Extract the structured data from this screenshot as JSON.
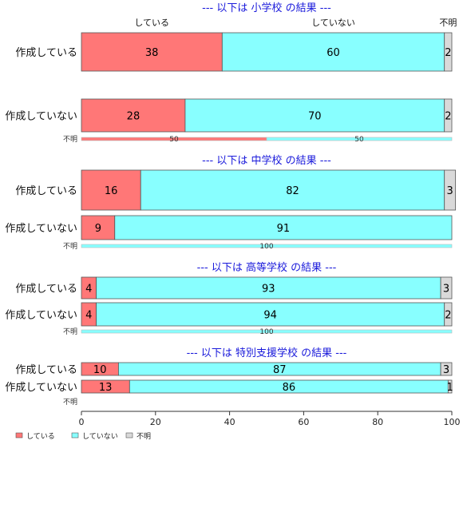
{
  "chart_data": {
    "type": "bar",
    "orientation": "horizontal",
    "stacked": true,
    "xlim": [
      0,
      100
    ],
    "x_ticks": [
      "0",
      "20",
      "40",
      "60",
      "80",
      "100"
    ],
    "column_headers": [
      "している",
      "していない",
      "不明"
    ],
    "legend": {
      "placement": "bottom-left",
      "entries": [
        "している",
        "していない",
        "不明"
      ]
    },
    "colors": {
      "yes": "#ff7777",
      "no": "#88ffff",
      "unknown": "#d9d9d9",
      "title": "#1a1adb"
    },
    "groups": [
      {
        "title": "--- 以下は 小学校 の結果 ---",
        "rows": [
          {
            "label": "作成している",
            "values": [
              38,
              60,
              2
            ]
          },
          {
            "label": "作成していない",
            "values": [
              28,
              70,
              2
            ]
          },
          {
            "label": "不明",
            "values": [
              50,
              50,
              0
            ]
          }
        ]
      },
      {
        "title": "--- 以下は 中学校 の結果 ---",
        "rows": [
          {
            "label": "作成している",
            "values": [
              16,
              82,
              3
            ]
          },
          {
            "label": "作成していない",
            "values": [
              9,
              91,
              0
            ]
          },
          {
            "label": "不明",
            "values": [
              0,
              100,
              0
            ]
          }
        ]
      },
      {
        "title": "--- 以下は 高等学校 の結果 ---",
        "rows": [
          {
            "label": "作成している",
            "values": [
              4,
              93,
              3
            ]
          },
          {
            "label": "作成していない",
            "values": [
              4,
              94,
              2
            ]
          },
          {
            "label": "不明",
            "values": [
              0,
              100,
              0
            ]
          }
        ]
      },
      {
        "title": "--- 以下は 特別支援学校 の結果 ---",
        "rows": [
          {
            "label": "作成している",
            "values": [
              10,
              87,
              3
            ]
          },
          {
            "label": "作成していない",
            "values": [
              13,
              86,
              1
            ]
          },
          {
            "label": "不明",
            "values": []
          }
        ]
      }
    ]
  }
}
